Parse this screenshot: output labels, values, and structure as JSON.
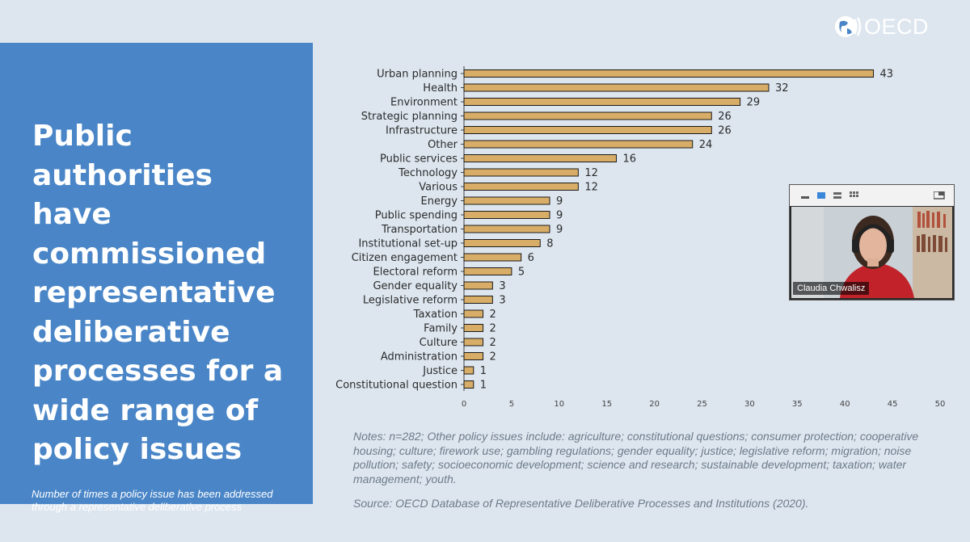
{
  "headline": "Public authorities have commissioned representative deliberative processes for a wide range of policy issues",
  "subcaption": "Number of times a policy issue has been addressed through a representative deliberative process",
  "logo_text": "OECD",
  "notes": "Notes: n=282; Other policy issues include: agriculture; constitutional questions; consumer protection; cooperative housing; culture; firework use; gambling regulations; gender equality; justice; legislative reform; migration; noise pollution; safety; socioeconomic development; science and research; sustainable development; taxation; water management; youth.",
  "source": "Source: OECD Database of Representative Deliberative Processes and Institutions (2020).",
  "video": {
    "participant_name": "Claudia Chwalisz"
  },
  "colors": {
    "bar": "#d8ad67",
    "bar_stroke": "#1a1a1a",
    "panel": "#4a86c7",
    "background": "#dde6ef"
  },
  "chart_data": {
    "type": "bar",
    "orientation": "horizontal",
    "title": "",
    "xlabel": "",
    "ylabel": "",
    "xlim": [
      0,
      50
    ],
    "xticks": [
      0,
      5,
      10,
      15,
      20,
      25,
      30,
      35,
      40,
      45,
      50
    ],
    "categories": [
      "Urban planning",
      "Health",
      "Environment",
      "Strategic planning",
      "Infrastructure",
      "Other",
      "Public services",
      "Technology",
      "Various",
      "Energy",
      "Public spending",
      "Transportation",
      "Institutional set-up",
      "Citizen engagement",
      "Electoral reform",
      "Gender equality",
      "Legislative reform",
      "Taxation",
      "Family",
      "Culture",
      "Administration",
      "Justice",
      "Constitutional question"
    ],
    "values": [
      43,
      32,
      29,
      26,
      26,
      24,
      16,
      12,
      12,
      9,
      9,
      9,
      8,
      6,
      5,
      3,
      3,
      2,
      2,
      2,
      2,
      1,
      1
    ]
  }
}
